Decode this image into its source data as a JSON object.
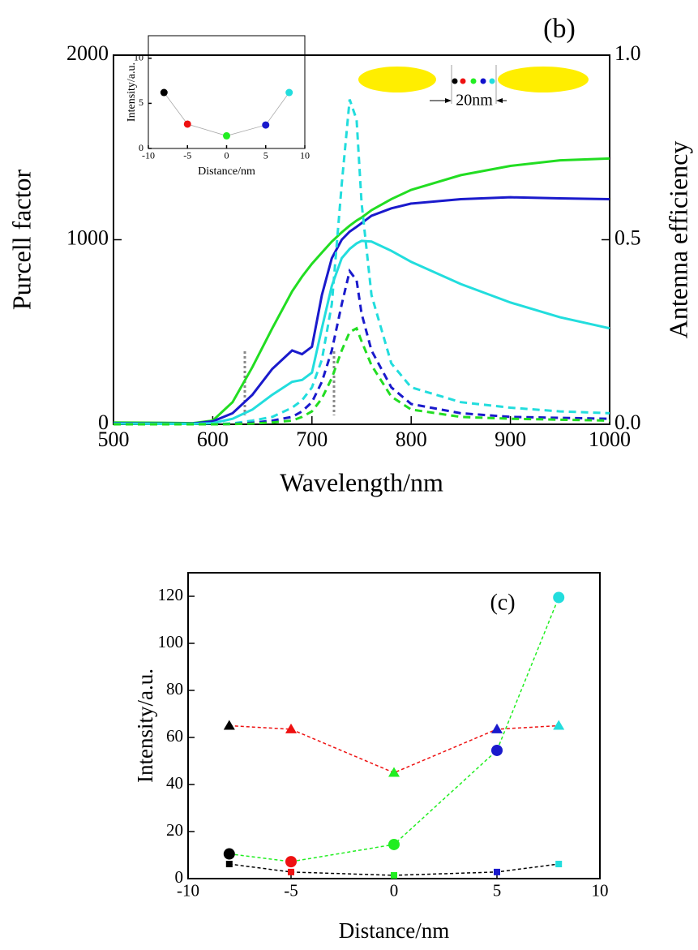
{
  "chart_data": [
    {
      "type": "line",
      "title": "(b)",
      "xlabel": "Wavelength/nm",
      "ylabel": "Purcell factor",
      "y2label": "Antenna efficiency",
      "annotation": "20nm",
      "x": [
        500,
        550,
        580,
        600,
        620,
        640,
        660,
        680,
        690,
        700,
        710,
        720,
        730,
        738,
        745,
        750,
        760,
        780,
        800,
        850,
        900,
        950,
        1000
      ],
      "xlim": [
        500,
        1000
      ],
      "xticks": [
        500,
        600,
        700,
        800,
        900,
        1000
      ],
      "ylim": [
        0,
        2000
      ],
      "yticks": [
        0,
        1000,
        2000
      ],
      "y2lim": [
        0,
        1
      ],
      "y2ticks": [
        {
          "value": 0,
          "label": "0.0"
        },
        {
          "value": 0.5,
          "label": "0.5"
        },
        {
          "value": 1,
          "label": "1.0"
        }
      ],
      "series": [
        {
          "color": "#22dd22",
          "axis": "y2",
          "line_style": "solid",
          "values": [
            0.005,
            0.004,
            0.003,
            0.01,
            0.06,
            0.155,
            0.26,
            0.36,
            0.4,
            0.435,
            0.465,
            0.495,
            0.52,
            0.538,
            0.552,
            0.56,
            0.58,
            0.61,
            0.635,
            0.675,
            0.7,
            0.715,
            0.72
          ]
        },
        {
          "color": "#1a1acc",
          "axis": "y2",
          "line_style": "solid",
          "values": [
            0.003,
            0.002,
            0.002,
            0.008,
            0.03,
            0.08,
            0.15,
            0.2,
            0.19,
            0.21,
            0.35,
            0.45,
            0.5,
            0.522,
            0.535,
            0.545,
            0.565,
            0.585,
            0.598,
            0.61,
            0.615,
            0.612,
            0.61
          ]
        },
        {
          "color": "#22dddd",
          "axis": "y2",
          "line_style": "solid",
          "values": [
            0.002,
            0.001,
            0.001,
            0.003,
            0.015,
            0.04,
            0.08,
            0.115,
            0.12,
            0.14,
            0.26,
            0.375,
            0.45,
            0.475,
            0.49,
            0.497,
            0.495,
            0.47,
            0.44,
            0.38,
            0.33,
            0.29,
            0.26
          ]
        },
        {
          "color": "#22dddd",
          "line_style": "dashed",
          "values": [
            0,
            0,
            0,
            0,
            5,
            20,
            40,
            90,
            130,
            200,
            350,
            650,
            1300,
            1760,
            1650,
            1200,
            700,
            330,
            200,
            120,
            90,
            70,
            60
          ]
        },
        {
          "color": "#1a1acc",
          "line_style": "dashed",
          "values": [
            0,
            0,
            0,
            0,
            2,
            8,
            20,
            40,
            70,
            120,
            230,
            400,
            650,
            830,
            780,
            600,
            400,
            200,
            110,
            60,
            40,
            35,
            30
          ]
        },
        {
          "color": "#22dd22",
          "line_style": "dashed",
          "values": [
            0,
            0,
            0,
            0,
            1,
            4,
            10,
            20,
            40,
            70,
            140,
            250,
            400,
            500,
            520,
            450,
            320,
            150,
            80,
            40,
            30,
            25,
            20
          ]
        }
      ]
    },
    {
      "type": "scatter",
      "xlabel": "Distance/nm",
      "ylabel": "Intensity/a.u.",
      "x": [
        -8,
        -5,
        0,
        5,
        8
      ],
      "values": [
        6.2,
        2.7,
        1.4,
        2.6,
        6.2
      ],
      "colors": [
        "#000000",
        "#ee1111",
        "#22ee22",
        "#1a1acc",
        "#22dddd"
      ],
      "line_color": "#aaaaaa",
      "xlim": [
        -10,
        10
      ],
      "xticks": [
        -10,
        -5,
        0,
        5,
        10
      ],
      "ylim": [
        0,
        12.5
      ],
      "yticks": [
        0,
        5,
        10
      ]
    },
    {
      "type": "line",
      "title": "(c)",
      "xlabel": "Distance/nm",
      "ylabel": "Intensity/a.u.",
      "x": [
        -8,
        -5,
        0,
        5,
        8
      ],
      "xlim": [
        -10,
        10
      ],
      "xticks": [
        -10,
        -5,
        0,
        5,
        10
      ],
      "ylim": [
        0,
        130
      ],
      "yticks": [
        0,
        20,
        40,
        60,
        80,
        100,
        120
      ],
      "point_colors": [
        "#000000",
        "#ee1111",
        "#22ee22",
        "#1a1acc",
        "#22dddd"
      ],
      "series": [
        {
          "color": "#ee1111",
          "marker": "triangle",
          "values": [
            65,
            63.5,
            45,
            63.5,
            65
          ]
        },
        {
          "color": "#22ee22",
          "marker": "circle",
          "values": [
            10.5,
            7.2,
            14.5,
            54.5,
            119.5
          ]
        },
        {
          "color": "#000000",
          "marker": "square",
          "values": [
            6.2,
            2.8,
            1.4,
            2.8,
            6.2
          ]
        }
      ]
    }
  ]
}
